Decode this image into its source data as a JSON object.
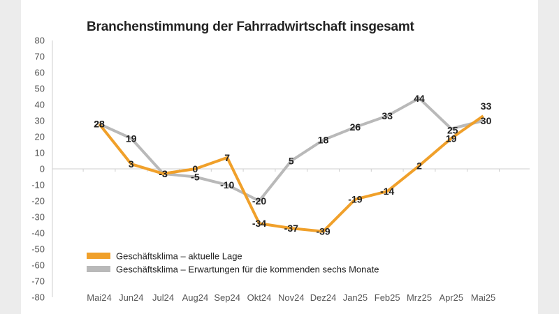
{
  "chart_data": {
    "type": "line",
    "title": "Branchenstimmung der Fahrradwirtschaft insgesamt",
    "categories": [
      "Mai24",
      "Jun24",
      "Jul24",
      "Aug24",
      "Sep24",
      "Okt24",
      "Nov24",
      "Dez24",
      "Jan25",
      "Feb25",
      "Mrz25",
      "Apr25",
      "Mai25"
    ],
    "ylim": [
      -80,
      80
    ],
    "yticks": [
      80,
      70,
      60,
      50,
      40,
      30,
      20,
      10,
      0,
      -10,
      -20,
      -30,
      -40,
      -50,
      -60,
      -70,
      -80
    ],
    "legend": "bottom-left",
    "series": [
      {
        "name": "Geschäftsklima – aktuelle Lage",
        "color": "#f0a02a",
        "values": [
          28,
          3,
          -3,
          0,
          7,
          -34,
          -37,
          -39,
          -19,
          -14,
          2,
          19,
          33
        ]
      },
      {
        "name": "Geschäftsklima – Erwartungen für die kommenden sechs Monate",
        "color": "#b9b9b9",
        "values": [
          28,
          19,
          -3,
          -5,
          -10,
          -20,
          5,
          18,
          26,
          33,
          44,
          25,
          30
        ]
      }
    ]
  }
}
